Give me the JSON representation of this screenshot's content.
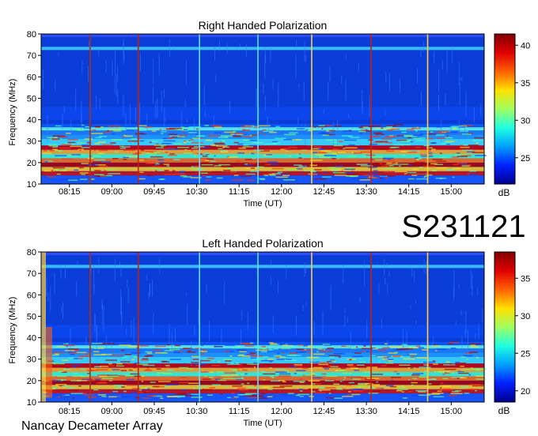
{
  "page": {
    "observation_id": "S231121",
    "instrument": "Nancay Decameter Array"
  },
  "chart_data": [
    {
      "type": "heatmap",
      "title": "Right Handed Polarization",
      "xlabel": "Time (UT)",
      "ylabel": "Frequency (MHz)",
      "x_ticks": [
        "08:15",
        "09:00",
        "09:45",
        "10:30",
        "11:15",
        "12:00",
        "12:45",
        "13:30",
        "14:15",
        "15:00"
      ],
      "y_ticks": [
        10,
        20,
        30,
        40,
        50,
        60,
        70,
        80
      ],
      "ylim": [
        10,
        80
      ],
      "colorbar_label": "dB",
      "colorbar_ticks": [
        25,
        30,
        35,
        40
      ],
      "colorbar_range": [
        21.5,
        41.5
      ],
      "colormap": [
        "#00008f",
        "#0020ff",
        "#00a0ff",
        "#20ffdf",
        "#9fff60",
        "#ffe000",
        "#ff6000",
        "#df0000",
        "#800000"
      ],
      "vertical_lines": [
        {
          "time": "08:37",
          "color": "#b03010"
        },
        {
          "time": "09:28",
          "color": "#c02010"
        },
        {
          "time": "10:33",
          "color": "#60e0ff"
        },
        {
          "time": "11:35",
          "color": "#60e0ff"
        },
        {
          "time": "12:32",
          "color": "#ffd040"
        },
        {
          "time": "13:35",
          "color": "#c02010"
        },
        {
          "time": "14:35",
          "color": "#ffd040"
        }
      ]
    },
    {
      "type": "heatmap",
      "title": "Left Handed Polarization",
      "xlabel": "Time (UT)",
      "ylabel": "Frequency (MHz)",
      "x_ticks": [
        "08:15",
        "09:00",
        "09:45",
        "10:30",
        "11:15",
        "12:00",
        "12:45",
        "13:30",
        "14:15",
        "15:00"
      ],
      "y_ticks": [
        10,
        20,
        30,
        40,
        50,
        60,
        70,
        80
      ],
      "ylim": [
        10,
        80
      ],
      "colorbar_label": "dB",
      "colorbar_ticks": [
        20,
        25,
        30,
        35
      ],
      "colorbar_range": [
        18.5,
        38.5
      ],
      "colormap": [
        "#00008f",
        "#0020ff",
        "#00a0ff",
        "#20ffdf",
        "#9fff60",
        "#ffe000",
        "#ff6000",
        "#df0000",
        "#800000"
      ],
      "vertical_lines": [
        {
          "time": "08:37",
          "color": "#b03010"
        },
        {
          "time": "09:28",
          "color": "#c02010"
        },
        {
          "time": "10:33",
          "color": "#60e0ff"
        },
        {
          "time": "11:35",
          "color": "#60e0ff"
        },
        {
          "time": "12:32",
          "color": "#ffd040"
        },
        {
          "time": "13:35",
          "color": "#c02010"
        },
        {
          "time": "14:35",
          "color": "#ffd040"
        }
      ]
    }
  ]
}
